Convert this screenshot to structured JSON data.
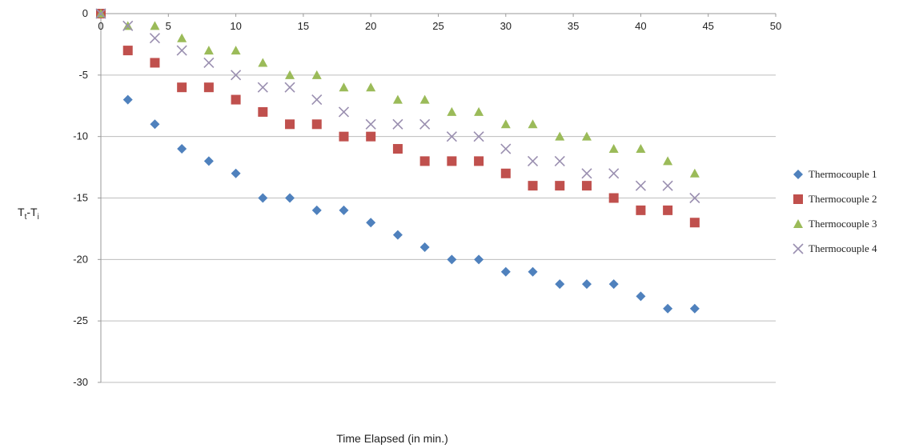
{
  "chart_data": {
    "type": "scatter",
    "xlabel": "Time Elapsed (in min.)",
    "ylabel": {
      "base": "T",
      "sub1": "t",
      "sep": "-T",
      "sub2": "i"
    },
    "xlim": [
      0,
      50
    ],
    "ylim": [
      -30,
      0
    ],
    "x_ticks": [
      0,
      5,
      10,
      15,
      20,
      25,
      30,
      35,
      40,
      45,
      50
    ],
    "y_ticks": [
      0,
      -5,
      -10,
      -15,
      -20,
      -25,
      -30
    ],
    "grid": "horizontal",
    "legend_position": "right",
    "x": [
      0,
      2,
      4,
      6,
      8,
      10,
      12,
      14,
      16,
      18,
      20,
      22,
      24,
      26,
      28,
      30,
      32,
      34,
      36,
      38,
      40,
      42,
      44
    ],
    "series": [
      {
        "name": "Thermocouple 1",
        "marker": "diamond",
        "color": "#4F81BD",
        "values": [
          0,
          -7,
          -9,
          -11,
          -12,
          -13,
          -15,
          -15,
          -16,
          -16,
          -17,
          -18,
          -19,
          -20,
          -20,
          -21,
          -21,
          -22,
          -22,
          -22,
          -23,
          -24,
          -24
        ]
      },
      {
        "name": "Thermocouple 2",
        "marker": "square",
        "color": "#C0504D",
        "values": [
          0,
          -3,
          -4,
          -6,
          -6,
          -7,
          -8,
          -9,
          -9,
          -10,
          -10,
          -11,
          -12,
          -12,
          -12,
          -13,
          -14,
          -14,
          -14,
          -15,
          -16,
          -16,
          -17
        ]
      },
      {
        "name": "Thermocouple 3",
        "marker": "triangle",
        "color": "#9BBB59",
        "values": [
          0,
          -1,
          -1,
          -2,
          -3,
          -3,
          -4,
          -5,
          -5,
          -6,
          -6,
          -7,
          -7,
          -8,
          -8,
          -9,
          -9,
          -10,
          -10,
          -11,
          -11,
          -12,
          -13
        ]
      },
      {
        "name": "Thermocouple 4",
        "marker": "x",
        "color": "#8064A2",
        "values": [
          0,
          -1,
          -2,
          -3,
          -4,
          -5,
          -6,
          -6,
          -7,
          -8,
          -9,
          -9,
          -9,
          -10,
          -10,
          -11,
          -12,
          -12,
          -13,
          -13,
          -14,
          -14,
          -15
        ]
      }
    ]
  }
}
